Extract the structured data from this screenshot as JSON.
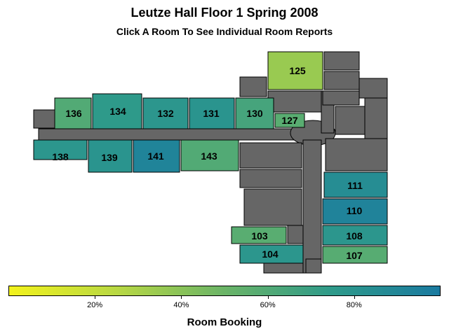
{
  "header": {
    "title": "Leutze Hall Floor 1 Spring 2008",
    "subtitle": "Click A Room To See Individual Room Reports"
  },
  "legend": {
    "label": "Room Booking",
    "ticks": [
      "20%",
      "40%",
      "60%",
      "80%"
    ],
    "tick_values": [
      20,
      40,
      60,
      80
    ],
    "range": [
      0,
      100
    ],
    "colors": [
      "#fde725",
      "#5ec962",
      "#21918c",
      "#3b528b"
    ],
    "scale_start": "#f2f21c",
    "scale_end": "#1a7aa0"
  },
  "colors": {
    "structure": "#666666",
    "outline": "#000000"
  },
  "rooms": [
    {
      "id": "125",
      "label": "125",
      "booking": 35
    },
    {
      "id": "136",
      "label": "136",
      "booking": 60
    },
    {
      "id": "134",
      "label": "134",
      "booking": 75
    },
    {
      "id": "132",
      "label": "132",
      "booking": 78
    },
    {
      "id": "131",
      "label": "131",
      "booking": 80
    },
    {
      "id": "130",
      "label": "130",
      "booking": 65
    },
    {
      "id": "127",
      "label": "127",
      "booking": 57
    },
    {
      "id": "138",
      "label": "138",
      "booking": 78
    },
    {
      "id": "139",
      "label": "139",
      "booking": 80
    },
    {
      "id": "141",
      "label": "141",
      "booking": 92
    },
    {
      "id": "143",
      "label": "143",
      "booking": 60
    },
    {
      "id": "111",
      "label": "111",
      "booking": 85
    },
    {
      "id": "110",
      "label": "110",
      "booking": 93
    },
    {
      "id": "108",
      "label": "108",
      "booking": 78
    },
    {
      "id": "103",
      "label": "103",
      "booking": 57
    },
    {
      "id": "104",
      "label": "104",
      "booking": 78
    },
    {
      "id": "107",
      "label": "107",
      "booking": 58
    }
  ]
}
